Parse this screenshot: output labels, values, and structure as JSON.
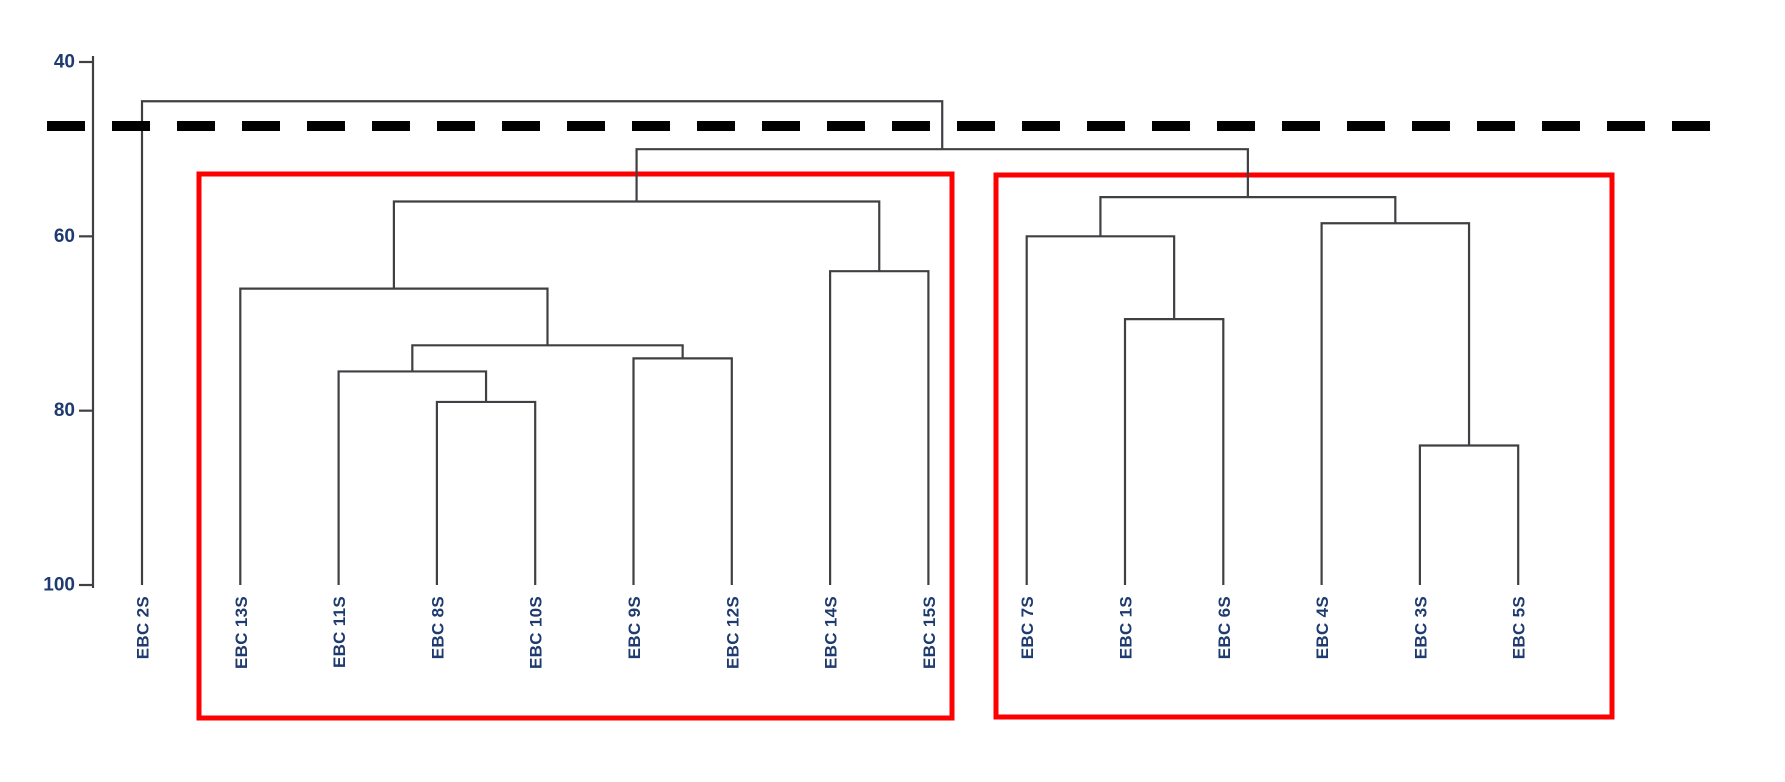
{
  "figure": {
    "background": "#FFFFFF",
    "description": "Hierarchical clustering dendrogram of EBC samples with similarity cut line and two red cluster boxes"
  },
  "chart_data": {
    "type": "dendrogram",
    "orientation": "top-down",
    "title": "",
    "xlabel": "",
    "ylabel": "",
    "y_axis": {
      "ticks": [
        40,
        60,
        80,
        100
      ],
      "top_value": 40,
      "bottom_value": 100,
      "leaf_value": 100
    },
    "leaves": [
      "EBC 2S",
      "EBC 13S",
      "EBC 11S",
      "EBC 8S",
      "EBC 10S",
      "EBC 9S",
      "EBC 12S",
      "EBC 14S",
      "EBC 15S",
      "EBC 7S",
      "EBC 1S",
      "EBC 6S",
      "EBC 4S",
      "EBC 3S",
      "EBC 5S"
    ],
    "merges": [
      {
        "id": "m1",
        "children": [
          "EBC 8S",
          "EBC 10S"
        ],
        "similarity": 79
      },
      {
        "id": "m2",
        "children": [
          "EBC 11S",
          "m1"
        ],
        "similarity": 75.5
      },
      {
        "id": "m3",
        "children": [
          "EBC 9S",
          "EBC 12S"
        ],
        "similarity": 74
      },
      {
        "id": "m4",
        "children": [
          "m2",
          "m3"
        ],
        "similarity": 72.5
      },
      {
        "id": "m5",
        "children": [
          "EBC 13S",
          "m4"
        ],
        "similarity": 66
      },
      {
        "id": "m6",
        "children": [
          "EBC 14S",
          "EBC 15S"
        ],
        "similarity": 64
      },
      {
        "id": "m7",
        "children": [
          "m5",
          "m6"
        ],
        "similarity": 56
      },
      {
        "id": "m8",
        "children": [
          "EBC 1S",
          "EBC 6S"
        ],
        "similarity": 69.5
      },
      {
        "id": "m9",
        "children": [
          "EBC 7S",
          "m8"
        ],
        "similarity": 60
      },
      {
        "id": "m10",
        "children": [
          "EBC 3S",
          "EBC 5S"
        ],
        "similarity": 84
      },
      {
        "id": "m11",
        "children": [
          "EBC 4S",
          "m10"
        ],
        "similarity": 58.5
      },
      {
        "id": "m12",
        "children": [
          "m9",
          "m11"
        ],
        "similarity": 55.5
      },
      {
        "id": "m13",
        "children": [
          "m7",
          "m12"
        ],
        "similarity": 50
      },
      {
        "id": "m14",
        "children": [
          "EBC 2S",
          "m13"
        ],
        "similarity": 44.5
      }
    ],
    "cut_line": {
      "similarity": 47,
      "style": "dashed",
      "color": "#000000"
    },
    "clusters": [
      {
        "id": "cluster-1",
        "color": "#FF0000",
        "leaves": [
          "EBC 13S",
          "EBC 11S",
          "EBC 8S",
          "EBC 10S",
          "EBC 9S",
          "EBC 12S",
          "EBC 14S",
          "EBC 15S"
        ]
      },
      {
        "id": "cluster-2",
        "color": "#FF0000",
        "leaves": [
          "EBC 7S",
          "EBC 1S",
          "EBC 6S",
          "EBC 4S",
          "EBC 3S",
          "EBC 5S"
        ]
      }
    ],
    "unboxed_leaves": [
      "EBC 2S"
    ],
    "colors": {
      "line": "#3F4043",
      "tick_label": "#1E3A6E",
      "leaf_label": "#1E3A6E",
      "cluster_box": "#FF0000",
      "cut_line": "#000000"
    },
    "legend": null,
    "grid": false
  }
}
